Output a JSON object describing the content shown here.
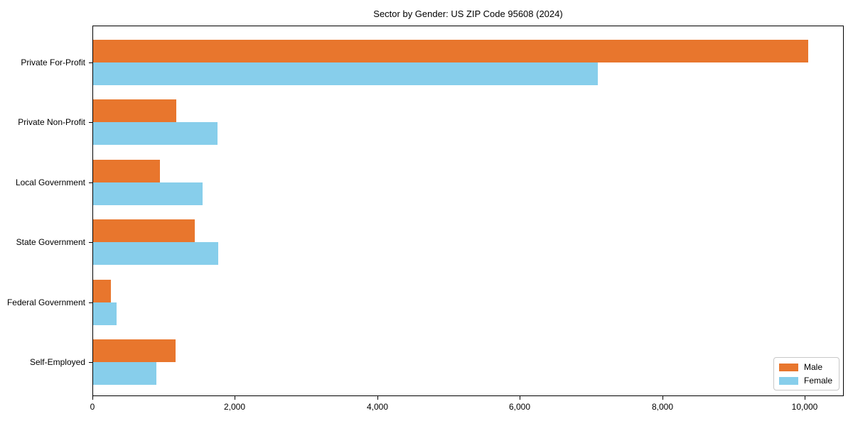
{
  "chart_data": {
    "type": "bar",
    "orientation": "horizontal",
    "title": "Sector by Gender: US ZIP Code 95608 (2024)",
    "categories": [
      "Private For-Profit",
      "Private Non-Profit",
      "Local Government",
      "State Government",
      "Federal Government",
      "Self-Employed"
    ],
    "series": [
      {
        "name": "Male",
        "color": "#E8762D",
        "values": [
          10040,
          1170,
          940,
          1430,
          250,
          1160
        ]
      },
      {
        "name": "Female",
        "color": "#87CEEB",
        "values": [
          7090,
          1750,
          1540,
          1760,
          330,
          890
        ]
      }
    ],
    "xlabel": "",
    "ylabel": "",
    "xlim": [
      0,
      10550
    ],
    "xticks": [
      0,
      2000,
      4000,
      6000,
      8000,
      10000
    ],
    "xtick_labels": [
      "0",
      "2,000",
      "4,000",
      "6,000",
      "8,000",
      "10,000"
    ],
    "grid": false,
    "legend_position": "lower right",
    "frame": "full-box",
    "colors": {
      "axis": "#000000",
      "background": "#ffffff",
      "legend_border": "#c8c8c8"
    }
  }
}
